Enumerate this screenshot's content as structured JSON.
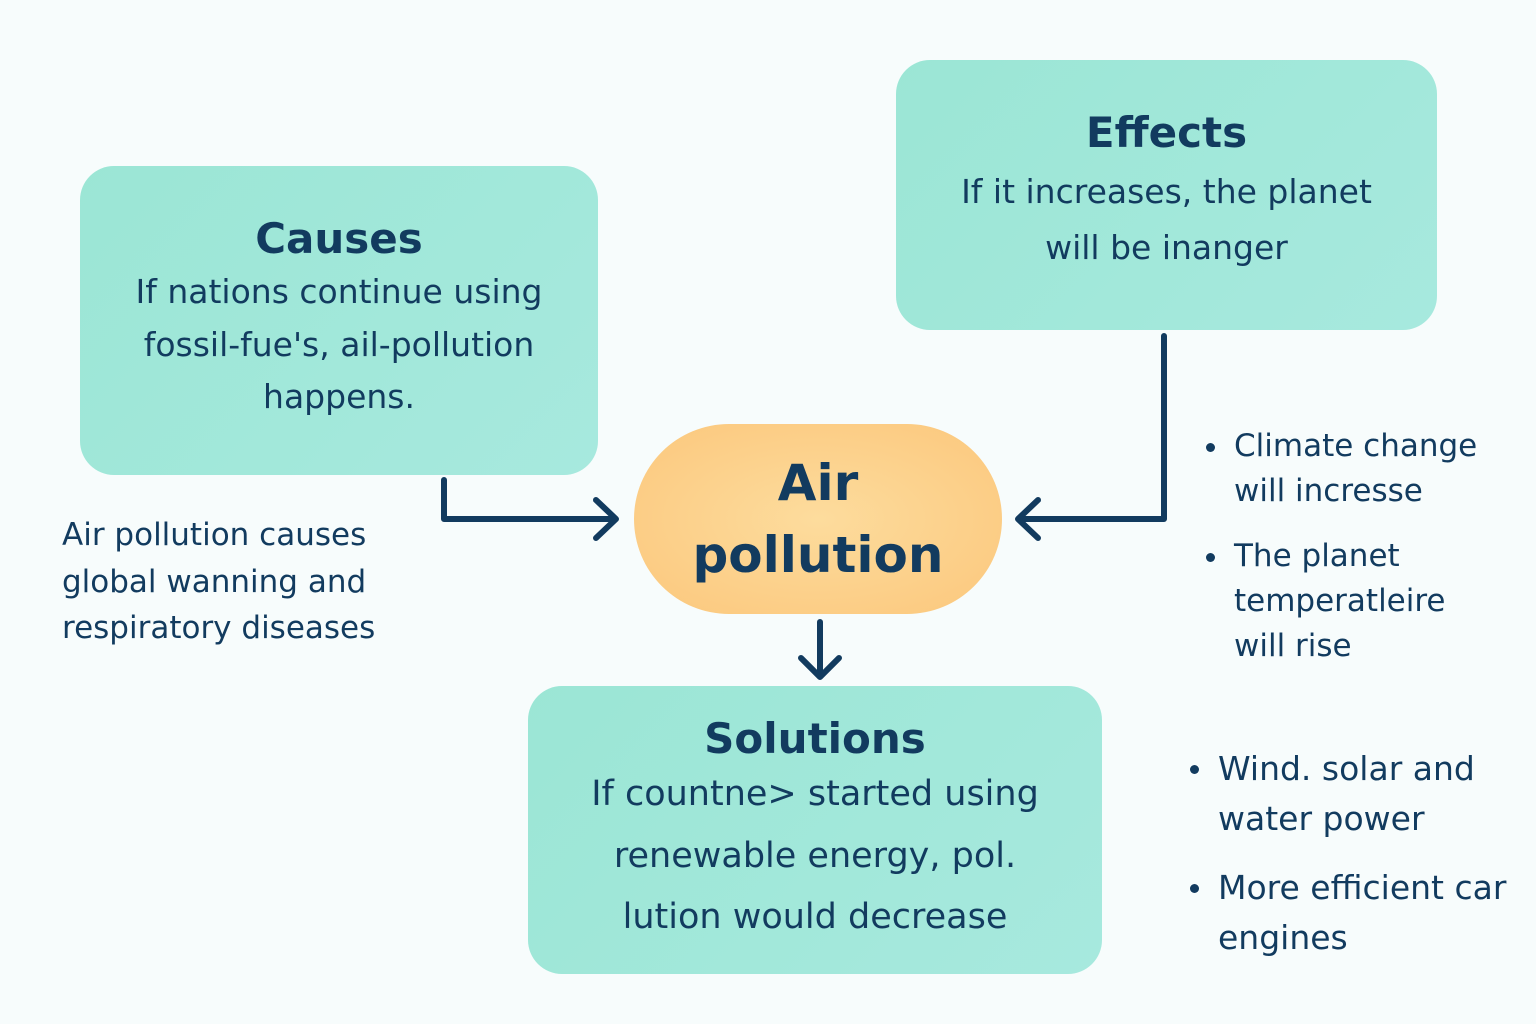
{
  "center": {
    "label": "Air pollution"
  },
  "causes": {
    "title": "Causes",
    "body": "If nations continue using fossil-fue's, ail-pollution happens.",
    "note": "Air pollution causes global wanning and respiratory diseases"
  },
  "effects": {
    "title": "Effects",
    "body": "If it increases, the planet will be inanger",
    "bullets": [
      "Climate change will incresse",
      "The planet temperatleire will rise"
    ]
  },
  "solutions": {
    "title": "Solutions",
    "body": "If countne> started using renewable energy, pol. lution would decrease",
    "bullets": [
      "Wind. solar and water power",
      "More efficient car engines"
    ]
  },
  "colors": {
    "card_fill": "#a3e8da",
    "center_fill": "#fbc77c",
    "text": "#123b5f",
    "connector": "#123b5f"
  }
}
